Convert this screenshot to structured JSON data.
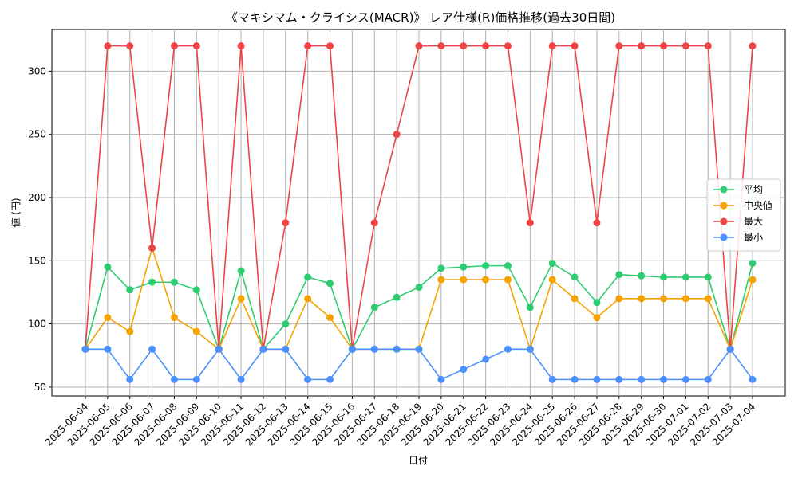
{
  "chart_data": {
    "type": "line",
    "title": "《マキシマム・クライシス(MACR)》 レア仕様(R)価格推移(過去30日間)",
    "xlabel": "日付",
    "ylabel": "値 (円)",
    "ylim": [
      43,
      333
    ],
    "yticks": [
      50,
      100,
      150,
      200,
      250,
      300
    ],
    "grid": true,
    "legend_position": "center-right",
    "categories": [
      "2025-06-04",
      "2025-06-05",
      "2025-06-06",
      "2025-06-07",
      "2025-06-08",
      "2025-06-09",
      "2025-06-10",
      "2025-06-11",
      "2025-06-12",
      "2025-06-13",
      "2025-06-14",
      "2025-06-15",
      "2025-06-16",
      "2025-06-17",
      "2025-06-18",
      "2025-06-19",
      "2025-06-20",
      "2025-06-21",
      "2025-06-22",
      "2025-06-23",
      "2025-06-24",
      "2025-06-25",
      "2025-06-26",
      "2025-06-27",
      "2025-06-28",
      "2025-06-29",
      "2025-06-30",
      "2025-07-01",
      "2025-07-02",
      "2025-07-03",
      "2025-07-04"
    ],
    "series": [
      {
        "name": "平均",
        "color": "#2ecc71",
        "values": [
          80,
          145,
          127,
          133,
          133,
          127,
          80,
          142,
          80,
          100,
          137,
          132,
          80,
          113,
          121,
          129,
          144,
          145,
          146,
          146,
          113,
          148,
          137,
          117,
          139,
          138,
          137,
          137,
          137,
          80,
          148
        ]
      },
      {
        "name": "中央値",
        "color": "#f5a300",
        "values": [
          80,
          105,
          94,
          160,
          105,
          94,
          80,
          120,
          80,
          80,
          120,
          105,
          80,
          80,
          80,
          80,
          135,
          135,
          135,
          135,
          80,
          135,
          120,
          105,
          120,
          120,
          120,
          120,
          120,
          80,
          135
        ]
      },
      {
        "name": "最大",
        "color": "#ef4444",
        "values": [
          80,
          320,
          320,
          160,
          320,
          320,
          80,
          320,
          80,
          180,
          320,
          320,
          80,
          180,
          250,
          320,
          320,
          320,
          320,
          320,
          180,
          320,
          320,
          180,
          320,
          320,
          320,
          320,
          320,
          80,
          320
        ]
      },
      {
        "name": "最小",
        "color": "#4a90ff",
        "values": [
          80,
          80,
          56,
          80,
          56,
          56,
          80,
          56,
          80,
          80,
          56,
          56,
          80,
          80,
          80,
          80,
          56,
          64,
          72,
          80,
          80,
          56,
          56,
          56,
          56,
          56,
          56,
          56,
          56,
          80,
          56
        ]
      }
    ]
  }
}
